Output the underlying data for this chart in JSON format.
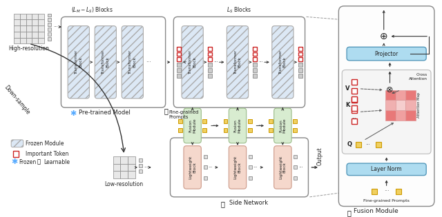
{
  "bg_color": "#ffffff",
  "frozen_block_color": "#dce8f5",
  "frozen_block_hatch": "///",
  "frozen_block_edge": "#aaaaaa",
  "fusion_block_color": "#d8ecd0",
  "fusion_block_edge": "#99bb88",
  "lightweight_block_color": "#f5d8cc",
  "lightweight_block_edge": "#cc9988",
  "projector_color": "#aedcf0",
  "layernorm_color": "#aedcf0",
  "token_red_edge": "#cc2222",
  "token_yellow_fill": "#f0d060",
  "token_gray_fill": "#cccccc",
  "text_color": "#222222",
  "label_pretrained": "Pre-trained Model",
  "label_side": "Side Network",
  "label_fusion": "Fusion Module",
  "label_highres": "High-resolution",
  "label_lowres": "Low-resolution",
  "label_output": "Output",
  "label_downsample": "Down-sample",
  "label_finegrained": "Fine-grained\nPrompts",
  "label_lm_ls": "$(L_M - L_S)$ Blocks",
  "label_ls": "$L_S$ Blocks",
  "legend_frozen_module": "Frozen Module",
  "legend_important_token": "Important Token",
  "legend_frozen": "Frozen",
  "legend_learnable": "Learnable"
}
